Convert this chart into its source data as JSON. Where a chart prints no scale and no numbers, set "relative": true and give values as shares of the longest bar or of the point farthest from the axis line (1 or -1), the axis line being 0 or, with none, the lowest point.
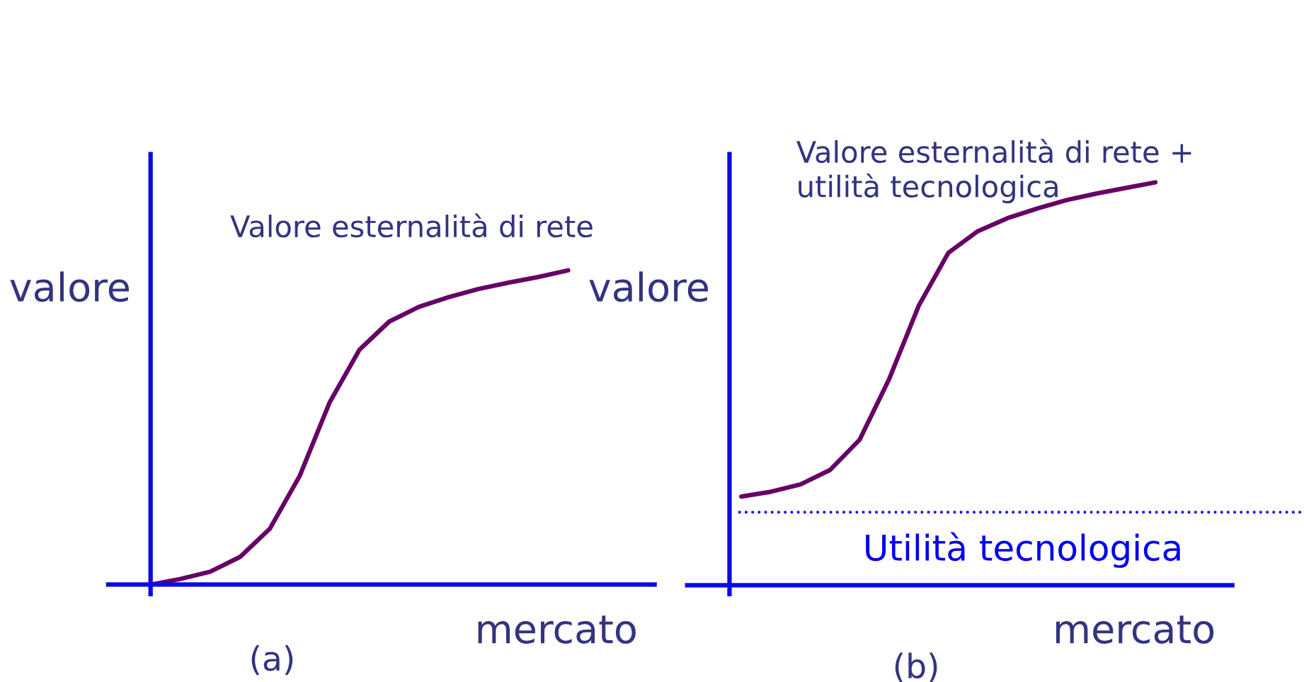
{
  "chart_data": [
    {
      "type": "line",
      "relative": true,
      "ylabel": "valore",
      "xlabel": "mercato",
      "annotations": [
        "(a)"
      ],
      "categories": [
        null,
        null,
        null,
        null,
        null,
        null,
        null,
        null,
        null,
        null,
        null,
        null,
        null,
        null,
        null
      ],
      "series": [
        {
          "name": "Valore esternalità di rete",
          "color": "#660066",
          "values": [
            0,
            0.018,
            0.041,
            0.088,
            0.178,
            0.346,
            0.579,
            0.747,
            0.837,
            0.884,
            0.915,
            0.941,
            0.961,
            0.979,
            1.0
          ]
        }
      ]
    },
    {
      "type": "line",
      "relative": true,
      "ylabel": "valore",
      "xlabel": "mercato",
      "annotations": [
        "(b)"
      ],
      "categories": [
        null,
        null,
        null,
        null,
        null,
        null,
        null,
        null,
        null,
        null,
        null,
        null,
        null,
        null,
        null
      ],
      "series": [
        {
          "name": "Valore esternalità di rete +\nutilità tecnologica",
          "color": "#660066",
          "values": [
            0.22,
            0.232,
            0.25,
            0.286,
            0.361,
            0.512,
            0.694,
            0.825,
            0.879,
            0.911,
            0.935,
            0.956,
            0.972,
            0.986,
            1.0
          ]
        }
      ],
      "ref_lines": [
        {
          "axis": "y",
          "value": 0.181,
          "label": "Utilità tecnologica",
          "color": "#0000ee",
          "line_style": "dotted"
        }
      ]
    }
  ]
}
